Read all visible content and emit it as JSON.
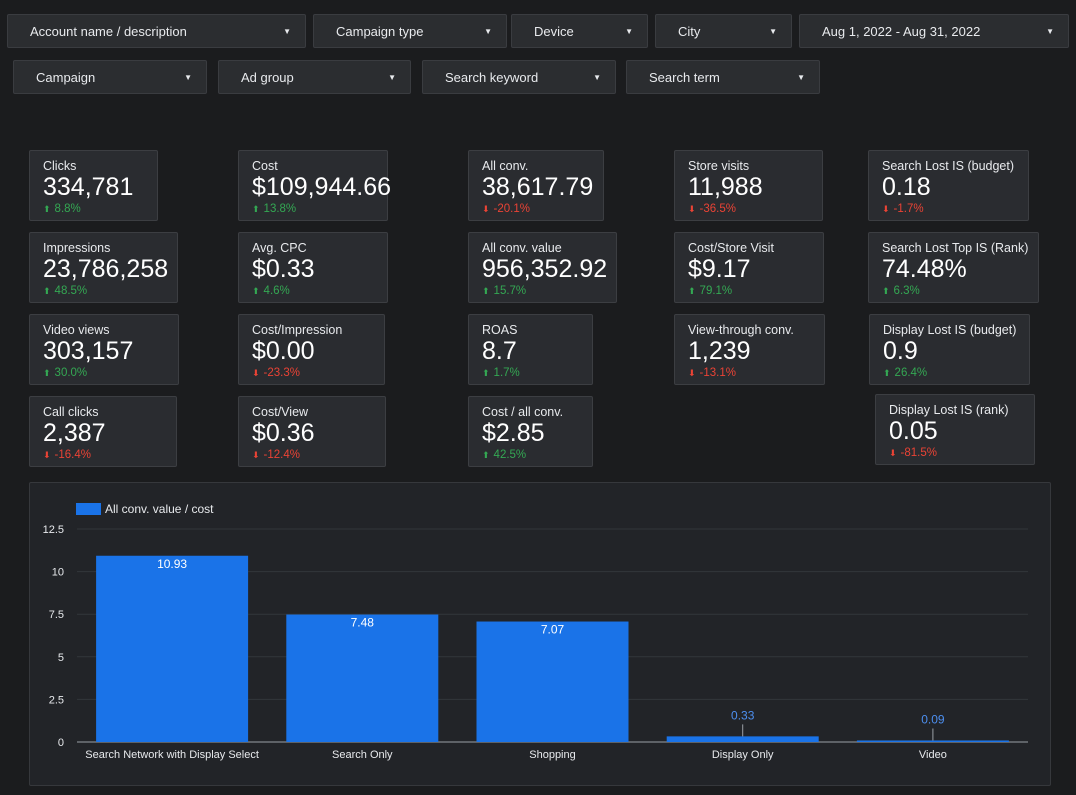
{
  "filters": [
    {
      "label": "Account name / description"
    },
    {
      "label": "Campaign type"
    },
    {
      "label": "Device"
    },
    {
      "label": "City"
    },
    {
      "label": "Aug 1, 2022 - Aug 31, 2022"
    },
    {
      "label": "Campaign"
    },
    {
      "label": "Ad group"
    },
    {
      "label": "Search keyword"
    },
    {
      "label": "Search term"
    }
  ],
  "metrics": [
    {
      "label": "Clicks",
      "value": "334,781",
      "change": "8.8%",
      "dir": "up"
    },
    {
      "label": "Impressions",
      "value": "23,786,258",
      "change": "48.5%",
      "dir": "up"
    },
    {
      "label": "Video views",
      "value": "303,157",
      "change": "30.0%",
      "dir": "up"
    },
    {
      "label": "Call clicks",
      "value": "2,387",
      "change": "-16.4%",
      "dir": "down"
    },
    {
      "label": "Cost",
      "value": "$109,944.66",
      "change": "13.8%",
      "dir": "up"
    },
    {
      "label": "Avg. CPC",
      "value": "$0.33",
      "change": "4.6%",
      "dir": "up"
    },
    {
      "label": "Cost/Impression",
      "value": "$0.00",
      "change": "-23.3%",
      "dir": "down"
    },
    {
      "label": "Cost/View",
      "value": "$0.36",
      "change": "-12.4%",
      "dir": "down"
    },
    {
      "label": "All conv.",
      "value": "38,617.79",
      "change": "-20.1%",
      "dir": "down"
    },
    {
      "label": "All conv. value",
      "value": "956,352.92",
      "change": "15.7%",
      "dir": "up"
    },
    {
      "label": "ROAS",
      "value": "8.7",
      "change": "1.7%",
      "dir": "up"
    },
    {
      "label": "Cost / all conv.",
      "value": "$2.85",
      "change": "42.5%",
      "dir": "up"
    },
    {
      "label": "Store visits",
      "value": "11,988",
      "change": "-36.5%",
      "dir": "down"
    },
    {
      "label": "Cost/Store Visit",
      "value": "$9.17",
      "change": "79.1%",
      "dir": "up"
    },
    {
      "label": "View-through conv.",
      "value": "1,239",
      "change": "-13.1%",
      "dir": "down"
    },
    {
      "label": "Search Lost IS (budget)",
      "value": "0.18",
      "change": "-1.7%",
      "dir": "down"
    },
    {
      "label": "Search Lost Top IS (Rank)",
      "value": "74.48%",
      "change": "6.3%",
      "dir": "up"
    },
    {
      "label": "Display Lost IS (budget)",
      "value": "0.9",
      "change": "26.4%",
      "dir": "up"
    },
    {
      "label": "Display Lost IS (rank)",
      "value": "0.05",
      "change": "-81.5%",
      "dir": "down"
    }
  ],
  "icons": {
    "up": "arrow-up-icon",
    "down": "arrow-down-icon",
    "caret": "caret-down-icon"
  },
  "colors": {
    "bar": "#1a73e8",
    "up": "#34a853",
    "down": "#ea4335",
    "small_label": "#4d8ff0"
  },
  "chart_data": {
    "type": "bar",
    "legend": "All conv. value / cost",
    "categories": [
      "Search Network with Display Select",
      "Search Only",
      "Shopping",
      "Display Only",
      "Video"
    ],
    "values": [
      10.93,
      7.48,
      7.07,
      0.33,
      0.09
    ],
    "value_labels": [
      "10.93",
      "7.48",
      "7.07",
      "0.33",
      "0.09"
    ],
    "yticks": [
      0,
      2.5,
      5,
      7.5,
      10,
      12.5
    ],
    "ytick_labels": [
      "0",
      "2.5",
      "5",
      "7.5",
      "10",
      "12.5"
    ],
    "ylim": [
      0,
      12.5
    ],
    "grid": true,
    "legend_position": "top-left"
  }
}
